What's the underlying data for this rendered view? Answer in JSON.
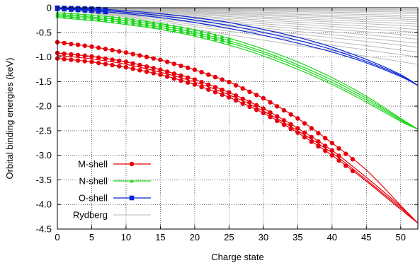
{
  "chart_data": {
    "type": "line",
    "title": "",
    "xlabel": "Charge state",
    "ylabel": "Orbital binding energies (keV)",
    "xlim": [
      0,
      52.5
    ],
    "ylim": [
      -4.5,
      0
    ],
    "xticks": [
      0,
      5,
      10,
      15,
      20,
      25,
      30,
      35,
      40,
      45,
      50
    ],
    "yticks": [
      0,
      -0.5,
      -1,
      -1.5,
      -2,
      -2.5,
      -3,
      -3.5,
      -4,
      -4.5
    ],
    "ytick_labels": [
      "0",
      "-0.5",
      "-1.0",
      "-1.5",
      "-2.0",
      "-2.5",
      "-3.0",
      "-3.5",
      "-4.0",
      "-4.5"
    ],
    "grid": true,
    "legend_position": "bottom-left",
    "colors": {
      "M-shell": "#e8000b",
      "N-shell": "#1ed51e",
      "O-shell": "#0a25d8",
      "Rydberg": "#bbbbbb"
    },
    "series": [
      {
        "name": "M-shell",
        "marker": "circle",
        "color": "#e8000b",
        "curves": [
          {
            "x": [
              0,
              5,
              10,
              15,
              20,
              25,
              30,
              35,
              40,
              45,
              50,
              52.5
            ],
            "y": [
              -0.7,
              -0.79,
              -0.91,
              -1.06,
              -1.26,
              -1.51,
              -1.84,
              -2.25,
              -2.75,
              -3.3,
              -4.02,
              -4.38
            ],
            "marker_range": [
              0,
              43
            ]
          },
          {
            "x": [
              0,
              5,
              10,
              15,
              20,
              25,
              30,
              35,
              40,
              45,
              50,
              52.5
            ],
            "y": [
              -0.92,
              -0.99,
              -1.1,
              -1.26,
              -1.46,
              -1.72,
              -2.05,
              -2.45,
              -2.9,
              -3.45,
              -4.04,
              -4.38
            ],
            "marker_range": [
              0,
              41
            ]
          },
          {
            "x": [
              0,
              5,
              10,
              15,
              20,
              25,
              30,
              35,
              40,
              45,
              50,
              52.5
            ],
            "y": [
              -1.03,
              -1.1,
              -1.21,
              -1.36,
              -1.56,
              -1.82,
              -2.14,
              -2.54,
              -3.0,
              -3.53,
              -4.1,
              -4.38
            ],
            "marker_range": [
              0,
              43
            ]
          },
          {
            "x": [
              0,
              5,
              10,
              15,
              20,
              25,
              30,
              35,
              40,
              45,
              50,
              52.5
            ],
            "y": [
              -0.97,
              -1.04,
              -1.15,
              -1.31,
              -1.51,
              -1.77,
              -2.1,
              -2.5,
              -2.95,
              -3.5,
              -4.07,
              -4.38
            ],
            "marker_range": null
          }
        ]
      },
      {
        "name": "N-shell",
        "marker": "triangle",
        "color": "#1ed51e",
        "curves": [
          {
            "x": [
              0,
              5,
              10,
              15,
              20,
              25,
              30,
              35,
              40,
              45,
              50,
              52.5
            ],
            "y": [
              -0.1,
              -0.15,
              -0.22,
              -0.32,
              -0.45,
              -0.62,
              -0.84,
              -1.1,
              -1.42,
              -1.8,
              -2.25,
              -2.47
            ],
            "marker_range": [
              0,
              25
            ]
          },
          {
            "x": [
              0,
              5,
              10,
              15,
              20,
              25,
              30,
              35,
              40,
              45,
              50,
              52.5
            ],
            "y": [
              -0.14,
              -0.19,
              -0.26,
              -0.36,
              -0.5,
              -0.67,
              -0.89,
              -1.16,
              -1.47,
              -1.84,
              -2.27,
              -2.47
            ],
            "marker_range": [
              0,
              25
            ]
          },
          {
            "x": [
              0,
              5,
              10,
              15,
              20,
              25,
              30,
              35,
              40,
              45,
              50,
              52.5
            ],
            "y": [
              -0.17,
              -0.22,
              -0.3,
              -0.4,
              -0.54,
              -0.71,
              -0.93,
              -1.2,
              -1.52,
              -1.88,
              -2.29,
              -2.47
            ],
            "marker_range": [
              0,
              25
            ]
          },
          {
            "x": [
              0,
              5,
              10,
              15,
              20,
              25,
              30,
              35,
              40,
              45,
              50,
              52.5
            ],
            "y": [
              -0.2,
              -0.26,
              -0.34,
              -0.44,
              -0.58,
              -0.76,
              -0.98,
              -1.25,
              -1.56,
              -1.92,
              -2.31,
              -2.47
            ],
            "marker_range": null
          }
        ]
      },
      {
        "name": "O-shell",
        "marker": "square",
        "color": "#0a25d8",
        "curves": [
          {
            "x": [
              0,
              5,
              10,
              15,
              20,
              25,
              30,
              35,
              40,
              45,
              50,
              52.5
            ],
            "y": [
              0,
              -0.02,
              -0.06,
              -0.12,
              -0.2,
              -0.3,
              -0.44,
              -0.6,
              -0.8,
              -1.05,
              -1.36,
              -1.58
            ],
            "marker_range": [
              0,
              7
            ]
          },
          {
            "x": [
              0,
              5,
              10,
              15,
              20,
              25,
              30,
              35,
              40,
              45,
              50,
              52.5
            ],
            "y": [
              -0.01,
              -0.04,
              -0.09,
              -0.16,
              -0.25,
              -0.36,
              -0.5,
              -0.66,
              -0.85,
              -1.09,
              -1.38,
              -1.58
            ],
            "marker_range": [
              0,
              7
            ]
          },
          {
            "x": [
              0,
              5,
              10,
              15,
              20,
              25,
              30,
              35,
              40,
              45,
              50,
              52.5
            ],
            "y": [
              -0.02,
              -0.06,
              -0.12,
              -0.2,
              -0.3,
              -0.42,
              -0.56,
              -0.72,
              -0.9,
              -1.12,
              -1.4,
              -1.58
            ],
            "marker_range": [
              0,
              7
            ]
          }
        ]
      },
      {
        "name": "Rydberg",
        "marker": "none",
        "color": "#bbbbbb",
        "curves": [
          {
            "x": [
              0,
              52.5
            ],
            "y": [
              0,
              -1.15
            ]
          },
          {
            "x": [
              0,
              52.5
            ],
            "y": [
              0,
              -1.0
            ]
          },
          {
            "x": [
              0,
              52.5
            ],
            "y": [
              0,
              -0.9
            ]
          },
          {
            "x": [
              0,
              52.5
            ],
            "y": [
              0,
              -0.8
            ]
          },
          {
            "x": [
              0,
              52.5
            ],
            "y": [
              0,
              -0.72
            ]
          },
          {
            "x": [
              0,
              52.5
            ],
            "y": [
              0,
              -0.64
            ]
          },
          {
            "x": [
              0,
              52.5
            ],
            "y": [
              0,
              -0.57
            ]
          },
          {
            "x": [
              0,
              52.5
            ],
            "y": [
              0,
              -0.5
            ]
          },
          {
            "x": [
              0,
              52.5
            ],
            "y": [
              0,
              -0.44
            ]
          },
          {
            "x": [
              0,
              52.5
            ],
            "y": [
              0,
              -0.38
            ]
          },
          {
            "x": [
              0,
              52.5
            ],
            "y": [
              0,
              -0.33
            ]
          },
          {
            "x": [
              0,
              52.5
            ],
            "y": [
              0,
              -0.28
            ]
          },
          {
            "x": [
              0,
              52.5
            ],
            "y": [
              0,
              -0.24
            ]
          },
          {
            "x": [
              0,
              52.5
            ],
            "y": [
              0,
              -0.2
            ]
          },
          {
            "x": [
              0,
              52.5
            ],
            "y": [
              0,
              -0.16
            ]
          },
          {
            "x": [
              0,
              52.5
            ],
            "y": [
              0,
              -0.12
            ]
          },
          {
            "x": [
              0,
              52.5
            ],
            "y": [
              0,
              -0.09
            ]
          },
          {
            "x": [
              0,
              52.5
            ],
            "y": [
              0,
              -0.06
            ]
          },
          {
            "x": [
              0,
              52.5
            ],
            "y": [
              0,
              -0.04
            ]
          }
        ]
      }
    ]
  }
}
